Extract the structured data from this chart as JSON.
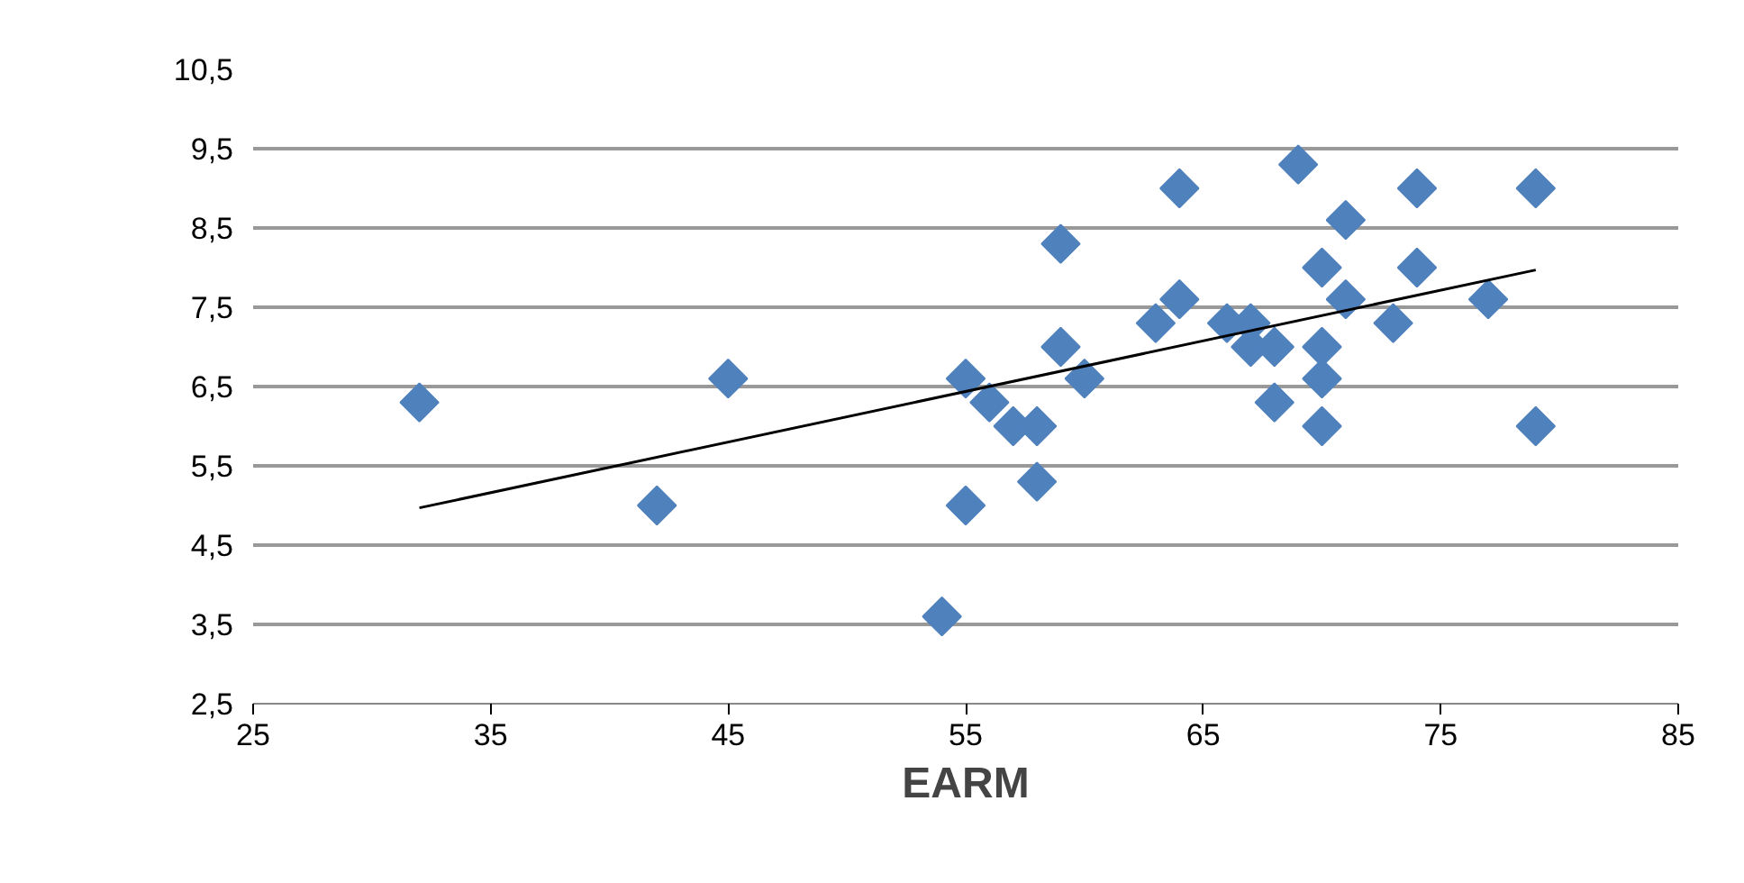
{
  "chart_data": {
    "type": "scatter",
    "xlabel": "EARM",
    "xlim": [
      25,
      85
    ],
    "xticks": [
      25,
      35,
      45,
      55,
      65,
      75,
      85
    ],
    "ylim": [
      2.5,
      10.5
    ],
    "yticks": [
      {
        "value": 2.5,
        "label": "2,5"
      },
      {
        "value": 3.5,
        "label": "3,5"
      },
      {
        "value": 4.5,
        "label": "4,5"
      },
      {
        "value": 5.5,
        "label": "5,5"
      },
      {
        "value": 6.5,
        "label": "6,5"
      },
      {
        "value": 7.5,
        "label": "7,5"
      },
      {
        "value": 8.5,
        "label": "8,5"
      },
      {
        "value": 9.5,
        "label": "9,5"
      },
      {
        "value": 10.5,
        "label": "10,5"
      }
    ],
    "grid": "y",
    "series": [
      {
        "marker": "diamond",
        "color": "#4f81bd",
        "x": [
          32,
          42,
          45,
          54,
          55,
          55,
          56,
          57,
          58,
          58,
          59,
          59,
          60,
          63,
          64,
          64,
          66,
          67,
          67,
          68,
          68,
          69,
          70,
          70,
          70,
          70,
          71,
          71,
          73,
          74,
          74,
          77,
          79,
          79
        ],
        "values": [
          6.3,
          5.0,
          6.6,
          3.6,
          6.6,
          5.0,
          6.3,
          6.0,
          6.0,
          5.3,
          8.3,
          7.0,
          6.6,
          7.3,
          9.0,
          7.6,
          7.3,
          7.3,
          7.0,
          7.0,
          6.3,
          9.3,
          8.0,
          7.0,
          6.6,
          6.0,
          8.6,
          7.6,
          7.3,
          9.0,
          8.0,
          7.6,
          9.0,
          6.0
        ]
      },
      {
        "type": "line",
        "color": "#000000",
        "x": [
          32,
          79
        ],
        "values": [
          4.97,
          7.97
        ]
      }
    ]
  }
}
